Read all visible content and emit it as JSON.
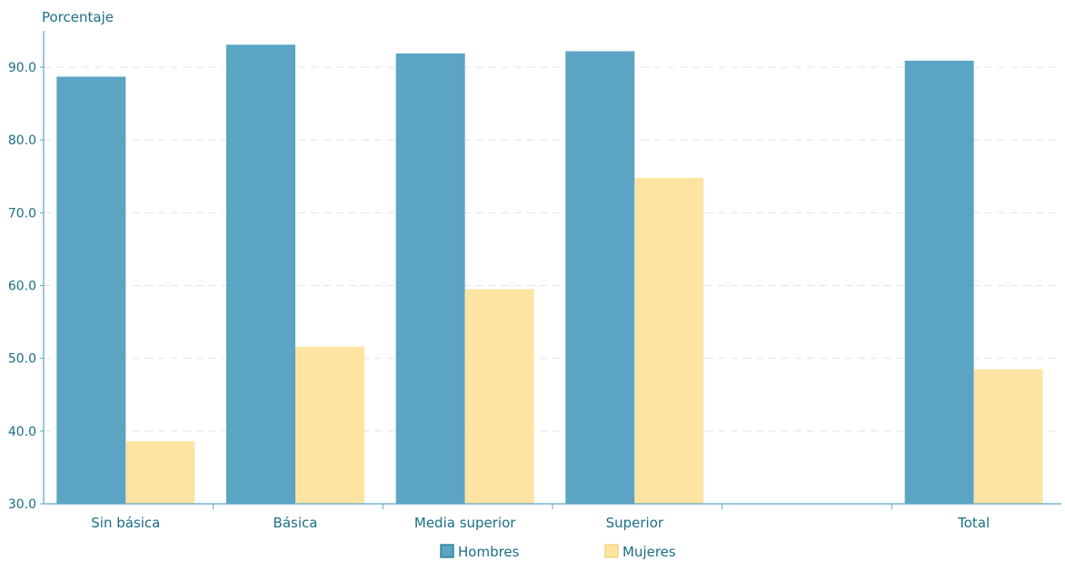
{
  "chart_data": {
    "type": "bar",
    "ylabel": "Porcentaje",
    "ylim": [
      30,
      95
    ],
    "yticks": [
      "30.0",
      "40.0",
      "50.0",
      "60.0",
      "70.0",
      "80.0",
      "90.0"
    ],
    "grid": true,
    "legend_position": "bottom",
    "categories": [
      "Sin básica",
      "Básica",
      "Media superior",
      "Superior",
      "",
      "Total"
    ],
    "series": [
      {
        "name": "Hombres",
        "values": [
          88.7,
          93.1,
          91.9,
          92.2,
          null,
          90.9
        ],
        "color": "#5ba4c4",
        "swatch_border": "#1a6e86"
      },
      {
        "name": "Mujeres",
        "values": [
          38.6,
          51.6,
          59.5,
          74.8,
          null,
          48.5
        ],
        "color": "#fde4a3",
        "swatch_border": "#f3cf6e"
      }
    ],
    "axis_color": "#5ba4c4",
    "text_color": "#1a6e86"
  }
}
